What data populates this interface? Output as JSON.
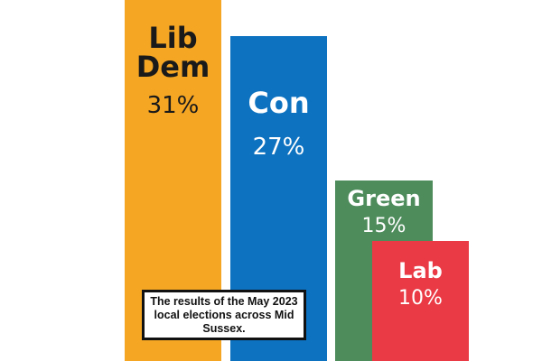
{
  "chart_data": {
    "type": "bar",
    "categories": [
      "Lib Dem",
      "Con",
      "Green",
      "Lab"
    ],
    "values": [
      31,
      27,
      15,
      10
    ],
    "value_labels": [
      "31%",
      "27%",
      "15%",
      "10%"
    ],
    "colors": [
      "#f5a623",
      "#0d72c0",
      "#4e8c5c",
      "#ea3a45"
    ],
    "label_colors": [
      "#1a1a1a",
      "#ffffff",
      "#ffffff",
      "#ffffff"
    ],
    "title": "",
    "xlabel": "",
    "ylabel": "",
    "grid": false,
    "legend": "none"
  },
  "caption": "The results of the May 2023 local elections across Mid Sussex."
}
